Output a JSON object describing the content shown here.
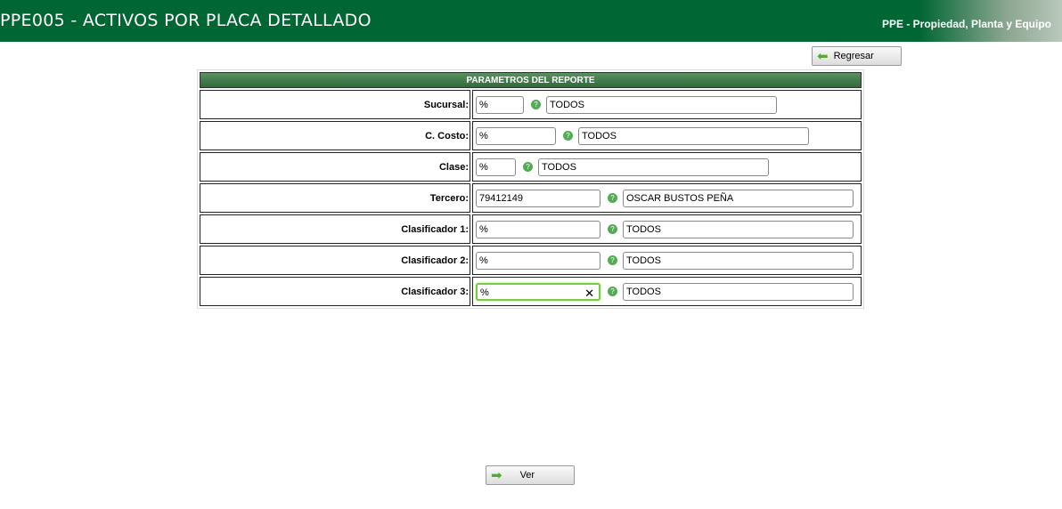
{
  "header": {
    "title": "PPE005 - ACTIVOS POR PLACA DETALLADO",
    "module": "PPE - Propiedad, Planta y Equipo"
  },
  "buttons": {
    "back": "Regresar",
    "view": "Ver"
  },
  "form": {
    "title": "PARAMETROS DEL REPORTE",
    "rows": [
      {
        "label": "Sucursal:",
        "code": "%",
        "desc": "TODOS"
      },
      {
        "label": "C. Costo:",
        "code": "%",
        "desc": "TODOS"
      },
      {
        "label": "Clase:",
        "code": "%",
        "desc": "TODOS"
      },
      {
        "label": "Tercero:",
        "code": "79412149",
        "desc": "OSCAR BUSTOS PEÑA"
      },
      {
        "label": "Clasificador 1:",
        "code": "%",
        "desc": "TODOS"
      },
      {
        "label": "Clasificador 2:",
        "code": "%",
        "desc": "TODOS"
      },
      {
        "label": "Clasificador 3:",
        "code": "%",
        "desc": "TODOS"
      }
    ]
  }
}
